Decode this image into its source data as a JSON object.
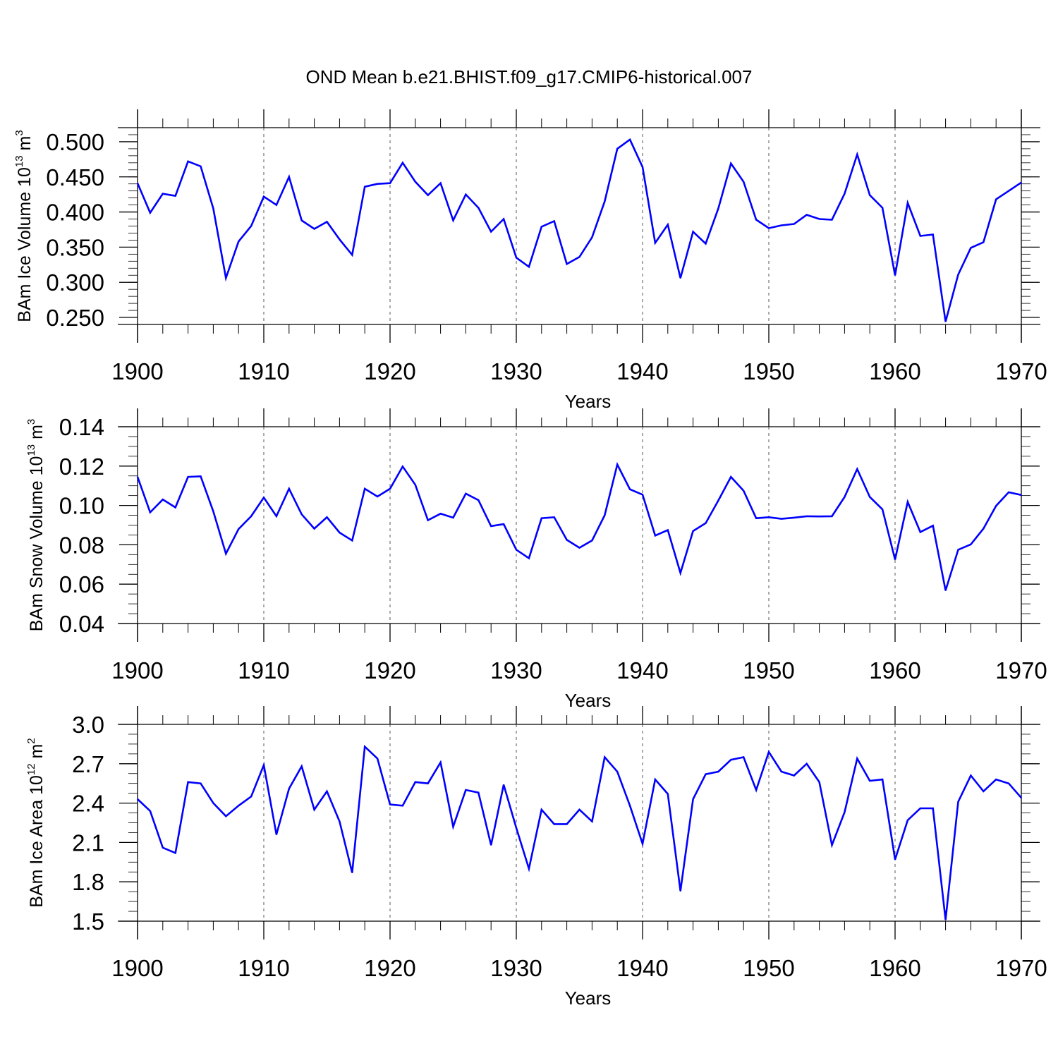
{
  "title": "OND Mean b.e21.BHIST.f09_g17.CMIP6-historical.007",
  "colors": {
    "line": "#0000ff",
    "axis": "#000000",
    "grid": "#555555",
    "background": "#ffffff"
  },
  "chart_data": [
    {
      "type": "line",
      "ylabel": "BAm Ice Volume 10",
      "ylabel_exp": "13",
      "ylabel_unit": " m",
      "ylabel_unit_exp": "3",
      "xlabel": "Years",
      "xlim": [
        1900,
        1970
      ],
      "ylim": [
        0.24,
        0.52
      ],
      "yticks": [
        0.25,
        0.3,
        0.35,
        0.4,
        0.45,
        0.5
      ],
      "yticklabels": [
        "0.250",
        "0.300",
        "0.350",
        "0.400",
        "0.450",
        "0.500"
      ],
      "yminor": 0.01,
      "xticks": [
        1900,
        1910,
        1920,
        1930,
        1940,
        1950,
        1960,
        1970
      ],
      "xticklabels": [
        "1900",
        "1910",
        "1920",
        "1930",
        "1940",
        "1950",
        "1960",
        "1970"
      ],
      "x_start": 1900,
      "values": [
        0.441,
        0.399,
        0.426,
        0.423,
        0.472,
        0.465,
        0.405,
        0.306,
        0.358,
        0.38,
        0.422,
        0.41,
        0.45,
        0.388,
        0.376,
        0.386,
        0.361,
        0.339,
        0.436,
        0.44,
        0.441,
        0.47,
        0.443,
        0.424,
        0.441,
        0.388,
        0.425,
        0.406,
        0.372,
        0.39,
        0.335,
        0.322,
        0.379,
        0.387,
        0.326,
        0.336,
        0.364,
        0.415,
        0.49,
        0.503,
        0.464,
        0.356,
        0.382,
        0.306,
        0.372,
        0.355,
        0.405,
        0.469,
        0.443,
        0.389,
        0.377,
        0.381,
        0.383,
        0.396,
        0.39,
        0.389,
        0.426,
        0.482,
        0.424,
        0.406,
        0.31,
        0.413,
        0.366,
        0.368,
        0.244,
        0.311,
        0.349,
        0.357,
        0.418,
        0.43,
        0.442
      ]
    },
    {
      "type": "line",
      "ylabel": "BAm Snow Volume 10",
      "ylabel_exp": "13",
      "ylabel_unit": " m",
      "ylabel_unit_exp": "3",
      "xlabel": "Years",
      "xlim": [
        1900,
        1970
      ],
      "ylim": [
        0.04,
        0.14
      ],
      "yticks": [
        0.04,
        0.06,
        0.08,
        0.1,
        0.12,
        0.14
      ],
      "yticklabels": [
        "0.04",
        "0.06",
        "0.08",
        "0.10",
        "0.12",
        "0.14"
      ],
      "yminor": 0.005,
      "xticks": [
        1900,
        1910,
        1920,
        1930,
        1940,
        1950,
        1960,
        1970
      ],
      "xticklabels": [
        "1900",
        "1910",
        "1920",
        "1930",
        "1940",
        "1950",
        "1960",
        "1970"
      ],
      "x_start": 1900,
      "values": [
        0.1145,
        0.0965,
        0.103,
        0.099,
        0.1145,
        0.1148,
        0.097,
        0.0755,
        0.088,
        0.0945,
        0.104,
        0.0945,
        0.1085,
        0.0955,
        0.0882,
        0.094,
        0.0862,
        0.0822,
        0.1085,
        0.1045,
        0.1085,
        0.1198,
        0.1105,
        0.0925,
        0.0958,
        0.0938,
        0.106,
        0.1027,
        0.0895,
        0.0905,
        0.0775,
        0.0732,
        0.0935,
        0.094,
        0.0825,
        0.0785,
        0.0822,
        0.095,
        0.1208,
        0.1082,
        0.1055,
        0.0847,
        0.0875,
        0.0657,
        0.087,
        0.091,
        0.1025,
        0.1145,
        0.1075,
        0.0935,
        0.094,
        0.0932,
        0.0938,
        0.0945,
        0.0944,
        0.0945,
        0.1043,
        0.1185,
        0.1043,
        0.098,
        0.0725,
        0.1018,
        0.0865,
        0.0897,
        0.0568,
        0.0775,
        0.0802,
        0.0882,
        0.0998,
        0.1067,
        0.1053
      ]
    },
    {
      "type": "line",
      "ylabel": "BAm Ice Area 10",
      "ylabel_exp": "12",
      "ylabel_unit": " m",
      "ylabel_unit_exp": "2",
      "xlabel": "Years",
      "xlim": [
        1900,
        1970
      ],
      "ylim": [
        1.5,
        3.0
      ],
      "yticks": [
        1.5,
        1.8,
        2.1,
        2.4,
        2.7,
        3.0
      ],
      "yticklabels": [
        "1.5",
        "1.8",
        "2.1",
        "2.4",
        "2.7",
        "3.0"
      ],
      "yminor": 0.075,
      "xticks": [
        1900,
        1910,
        1920,
        1930,
        1940,
        1950,
        1960,
        1970
      ],
      "xticklabels": [
        "1900",
        "1910",
        "1920",
        "1930",
        "1940",
        "1950",
        "1960",
        "1970"
      ],
      "x_start": 1900,
      "values": [
        2.43,
        2.34,
        2.06,
        2.02,
        2.56,
        2.55,
        2.4,
        2.3,
        2.38,
        2.45,
        2.69,
        2.16,
        2.51,
        2.68,
        2.35,
        2.49,
        2.26,
        1.87,
        2.83,
        2.74,
        2.39,
        2.38,
        2.56,
        2.55,
        2.71,
        2.22,
        2.5,
        2.48,
        2.08,
        2.54,
        2.21,
        1.9,
        2.35,
        2.24,
        2.24,
        2.35,
        2.26,
        2.75,
        2.64,
        2.38,
        2.09,
        2.58,
        2.47,
        1.73,
        2.43,
        2.62,
        2.64,
        2.73,
        2.75,
        2.5,
        2.79,
        2.64,
        2.61,
        2.7,
        2.56,
        2.08,
        2.33,
        2.74,
        2.57,
        2.58,
        1.97,
        2.27,
        2.36,
        2.36,
        1.51,
        2.41,
        2.61,
        2.49,
        2.58,
        2.55,
        2.44
      ]
    }
  ]
}
